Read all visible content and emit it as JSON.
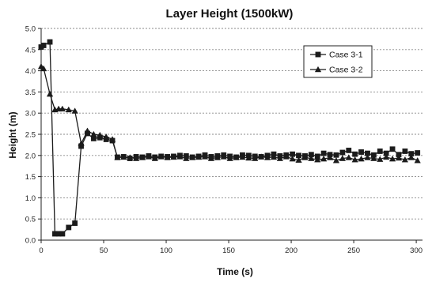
{
  "chart_data": {
    "type": "line",
    "title": "Layer Height (1500kW)",
    "xlabel": "Time (s)",
    "ylabel": "Height (m)",
    "xlim": [
      0,
      305
    ],
    "ylim": [
      0,
      5
    ],
    "xticks": [
      0,
      50,
      100,
      150,
      200,
      250,
      300
    ],
    "yticks": [
      0.0,
      0.5,
      1.0,
      1.5,
      2.0,
      2.5,
      3.0,
      3.5,
      4.0,
      4.5,
      5.0
    ],
    "ytick_labels": [
      "0.0",
      "0.5",
      "1.0",
      "1.5",
      "2.0",
      "2.5",
      "3.0",
      "3.5",
      "4.0",
      "4.5",
      "5.0"
    ],
    "grid": true,
    "legend_position": "top-right",
    "series": [
      {
        "name": "Case 3-1",
        "marker": "square",
        "color": "#1b1b1b",
        "x": [
          0,
          2,
          7,
          11,
          14,
          17,
          22,
          27,
          32,
          37,
          42,
          47,
          52,
          57,
          61,
          66,
          71,
          76,
          81,
          86,
          91,
          96,
          101,
          106,
          111,
          116,
          121,
          126,
          131,
          136,
          141,
          146,
          151,
          156,
          161,
          166,
          171,
          176,
          181,
          186,
          191,
          196,
          201,
          206,
          211,
          216,
          221,
          226,
          231,
          236,
          241,
          246,
          251,
          256,
          261,
          266,
          271,
          276,
          281,
          286,
          291,
          296,
          301
        ],
        "y": [
          4.56,
          4.6,
          4.68,
          0.15,
          0.15,
          0.15,
          0.3,
          0.4,
          2.22,
          2.52,
          2.4,
          2.42,
          2.38,
          2.35,
          1.96,
          1.97,
          1.93,
          1.97,
          1.96,
          1.99,
          1.96,
          1.98,
          1.97,
          1.98,
          2.0,
          1.99,
          1.96,
          1.98,
          2.01,
          1.97,
          1.99,
          2.01,
          1.98,
          1.96,
          2.01,
          2.0,
          1.98,
          1.97,
          2.0,
          2.03,
          1.99,
          2.01,
          2.03,
          2.0,
          1.99,
          2.02,
          1.98,
          2.05,
          2.02,
          2.01,
          2.07,
          2.12,
          2.03,
          2.08,
          2.05,
          2.01,
          2.1,
          2.05,
          2.15,
          2.02,
          2.1,
          2.04,
          2.06
        ]
      },
      {
        "name": "Case 3-2",
        "marker": "triangle",
        "color": "#1b1b1b",
        "x": [
          0,
          2,
          7,
          11,
          14,
          17,
          22,
          27,
          32,
          37,
          42,
          47,
          52,
          57,
          61,
          66,
          71,
          76,
          81,
          86,
          91,
          96,
          101,
          106,
          111,
          116,
          121,
          126,
          131,
          136,
          141,
          146,
          151,
          156,
          161,
          166,
          171,
          176,
          181,
          186,
          191,
          196,
          201,
          206,
          211,
          216,
          221,
          226,
          231,
          236,
          241,
          246,
          251,
          256,
          261,
          266,
          271,
          276,
          281,
          286,
          291,
          296,
          301
        ],
        "y": [
          4.1,
          4.05,
          3.45,
          3.08,
          3.1,
          3.1,
          3.08,
          3.05,
          2.28,
          2.58,
          2.5,
          2.48,
          2.44,
          2.38,
          1.95,
          1.96,
          1.95,
          1.93,
          1.95,
          1.97,
          1.93,
          1.97,
          1.95,
          1.96,
          1.97,
          1.93,
          1.95,
          1.96,
          1.97,
          1.93,
          1.95,
          1.97,
          1.93,
          1.95,
          1.96,
          1.94,
          1.93,
          1.97,
          1.95,
          1.96,
          1.93,
          1.97,
          1.92,
          1.89,
          1.95,
          1.93,
          1.9,
          1.92,
          1.95,
          1.88,
          1.93,
          1.95,
          1.9,
          1.92,
          1.95,
          1.93,
          1.91,
          1.96,
          1.92,
          1.94,
          1.9,
          1.95,
          1.88
        ]
      }
    ]
  }
}
